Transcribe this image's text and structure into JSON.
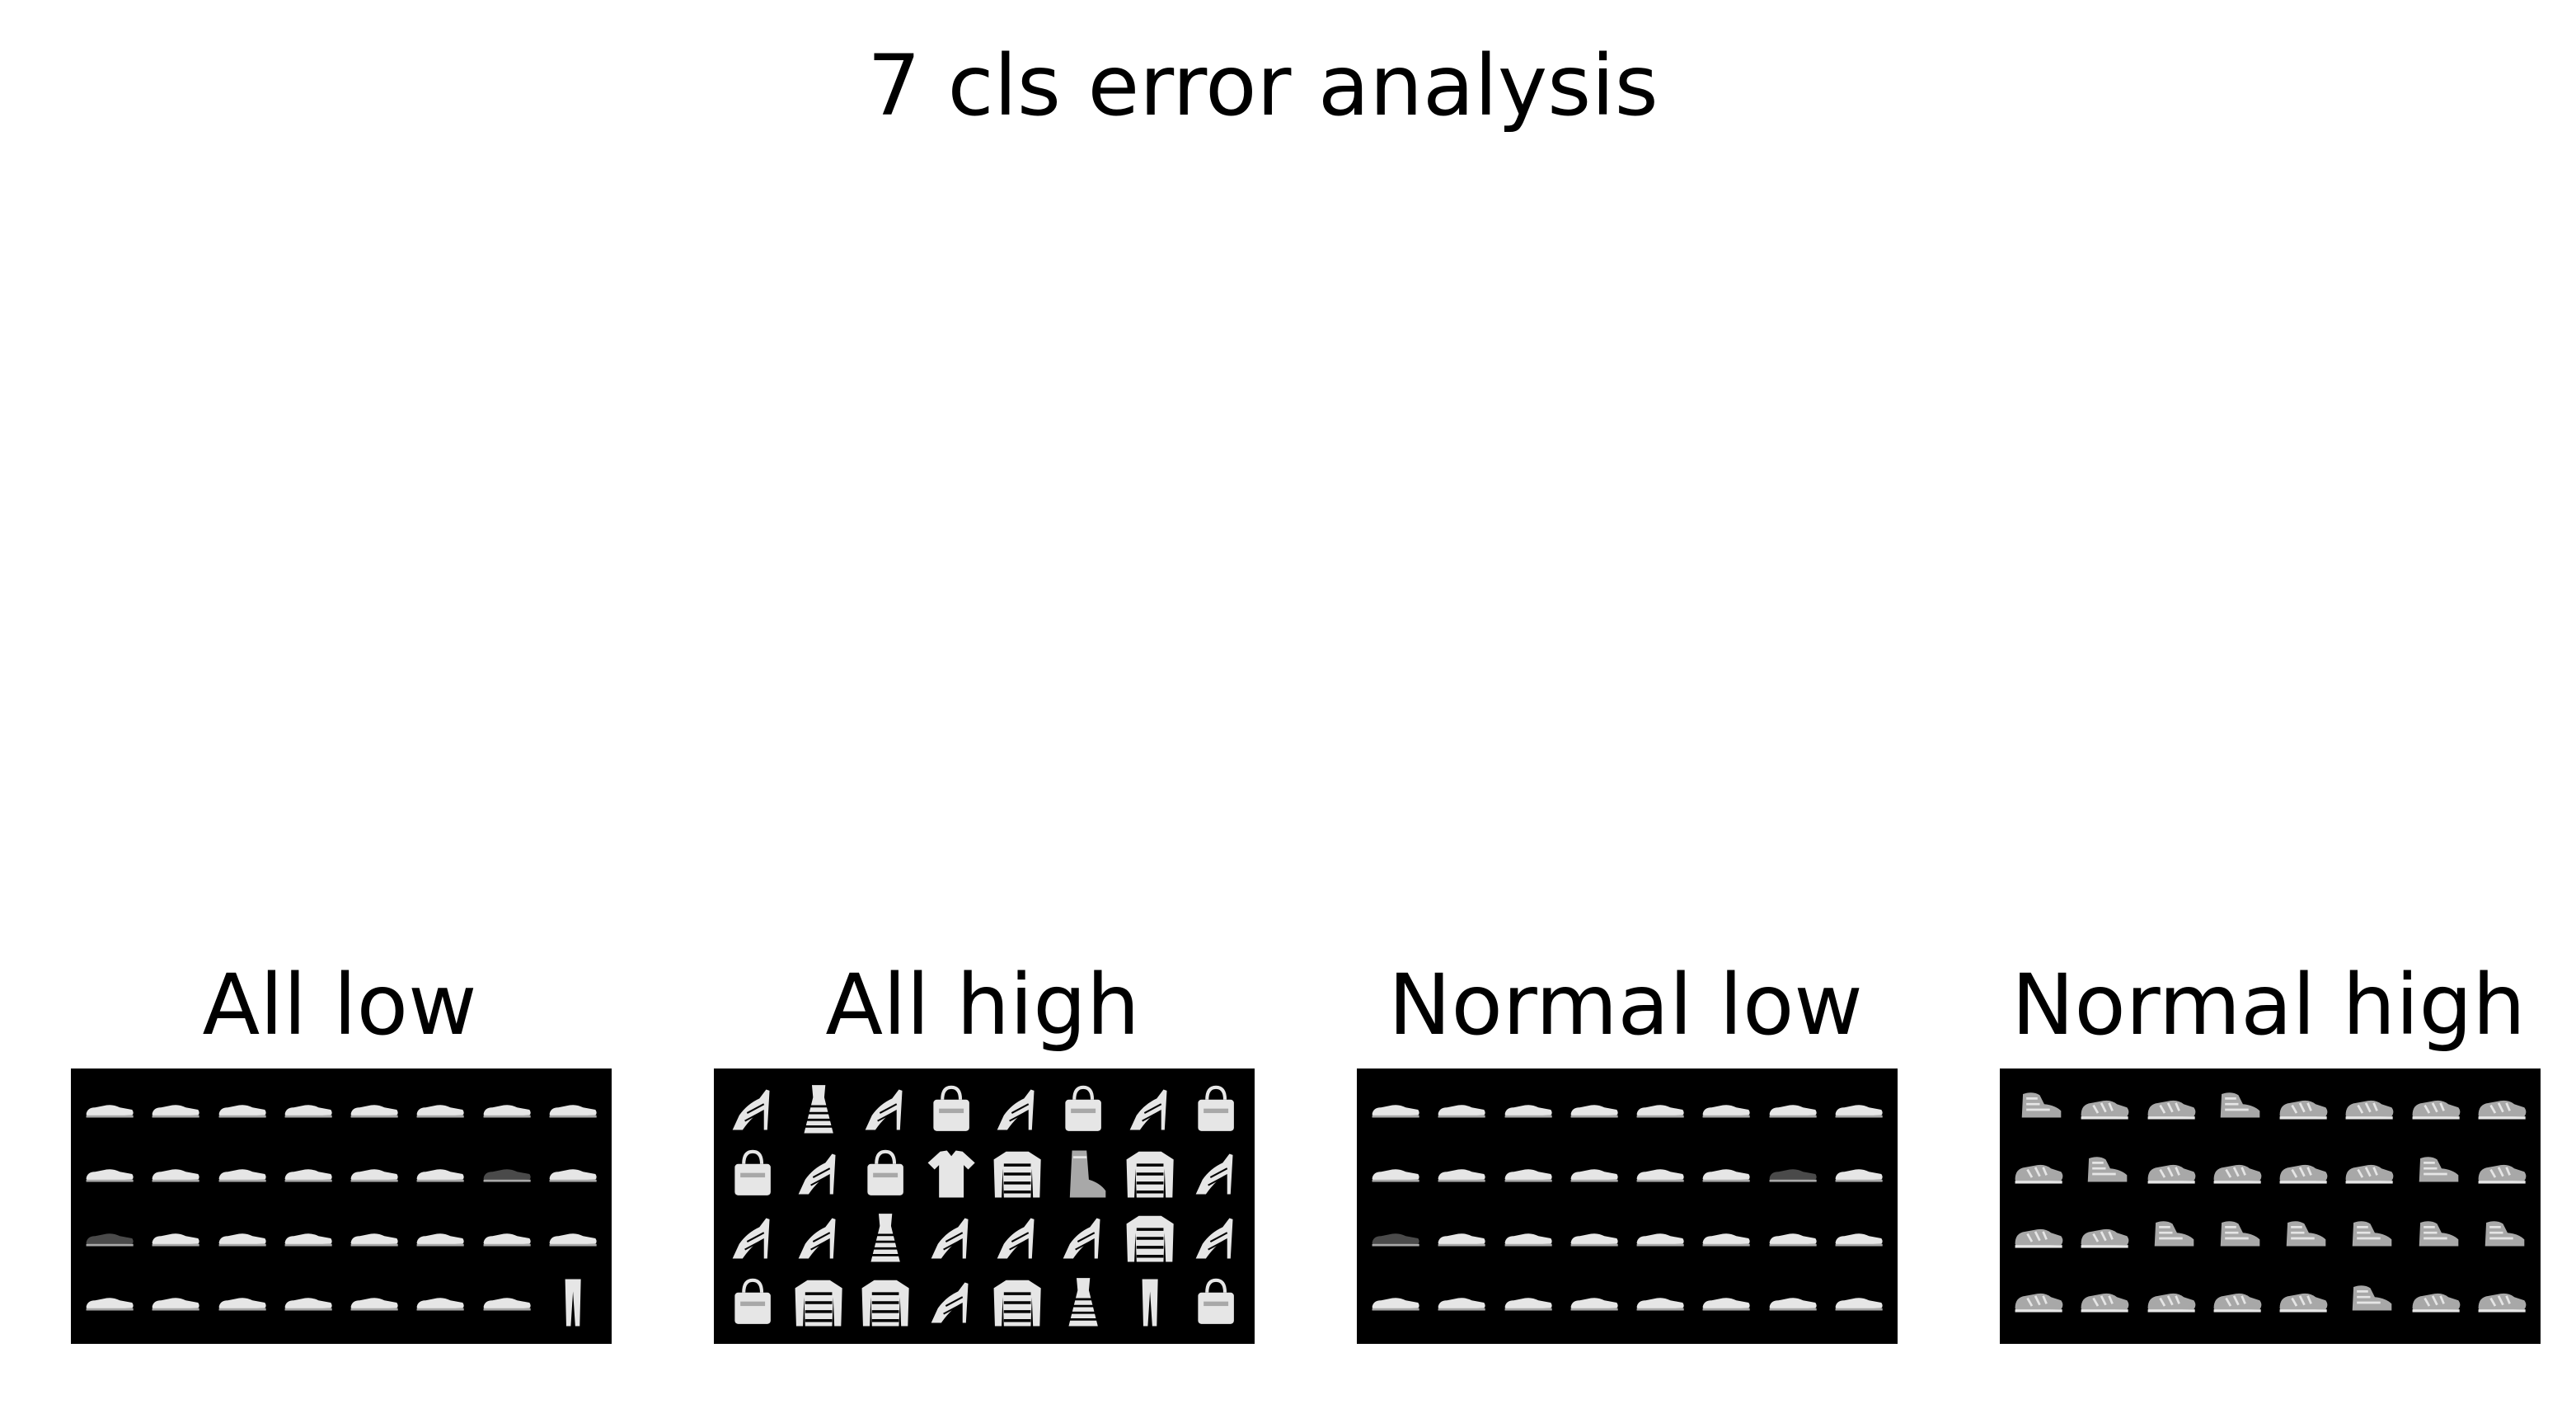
{
  "figure": {
    "title": "7 cls error analysis"
  },
  "panels": [
    {
      "title": "All low",
      "thumbnails": [
        "sneaker",
        "sneaker",
        "sneaker",
        "sneaker",
        "sneaker",
        "sneaker",
        "sneaker",
        "sneaker",
        "sneaker",
        "sneaker",
        "sneaker",
        "sneaker",
        "sneaker",
        "sneaker",
        "sneaker-dark",
        "sneaker",
        "sneaker-dark",
        "sneaker",
        "sneaker",
        "sneaker",
        "sneaker",
        "sneaker",
        "sneaker",
        "sneaker",
        "sneaker",
        "sneaker",
        "sneaker",
        "sneaker",
        "sneaker",
        "sneaker",
        "sneaker",
        "trouser"
      ]
    },
    {
      "title": "All high",
      "thumbnails": [
        "sandal",
        "dress",
        "sandal",
        "bag",
        "sandal",
        "bag",
        "sandal",
        "bag",
        "bag",
        "sandal",
        "bag",
        "shirt",
        "pullover",
        "boot",
        "pullover",
        "sandal",
        "sandal",
        "sandal",
        "dress",
        "sandal",
        "sandal",
        "sandal",
        "pullover",
        "sandal",
        "bag",
        "pullover",
        "pullover",
        "sandal",
        "pullover",
        "dress",
        "trouser",
        "bag"
      ]
    },
    {
      "title": "Normal low",
      "thumbnails": [
        "sneaker",
        "sneaker",
        "sneaker",
        "sneaker",
        "sneaker",
        "sneaker",
        "sneaker",
        "sneaker",
        "sneaker",
        "sneaker",
        "sneaker",
        "sneaker",
        "sneaker",
        "sneaker",
        "sneaker-dark",
        "sneaker",
        "sneaker-dark",
        "sneaker",
        "sneaker",
        "sneaker",
        "sneaker",
        "sneaker",
        "sneaker",
        "sneaker",
        "sneaker",
        "sneaker",
        "sneaker",
        "sneaker",
        "sneaker",
        "sneaker",
        "sneaker",
        "sneaker"
      ]
    },
    {
      "title": "Normal high",
      "thumbnails": [
        "hightop",
        "sneaker-pattern",
        "sneaker-pattern",
        "hightop",
        "sneaker-pattern",
        "sneaker-pattern",
        "sneaker-pattern",
        "sneaker-pattern",
        "sneaker-pattern",
        "hightop",
        "sneaker-pattern",
        "sneaker-pattern",
        "sneaker-pattern",
        "sneaker-pattern",
        "hightop",
        "sneaker-pattern",
        "sneaker-pattern",
        "sneaker-pattern",
        "hightop",
        "hightop",
        "hightop",
        "hightop",
        "hightop",
        "hightop",
        "sneaker-pattern",
        "sneaker-pattern",
        "sneaker-pattern",
        "sneaker-pattern",
        "sneaker-pattern",
        "hightop",
        "sneaker-pattern",
        "sneaker-pattern"
      ]
    }
  ],
  "colors": {
    "background": "#ffffff",
    "grid_background": "#000000",
    "item_light": "#e6e6e6",
    "item_mid": "#a8a8a8",
    "item_dark": "#4a4a4a"
  }
}
